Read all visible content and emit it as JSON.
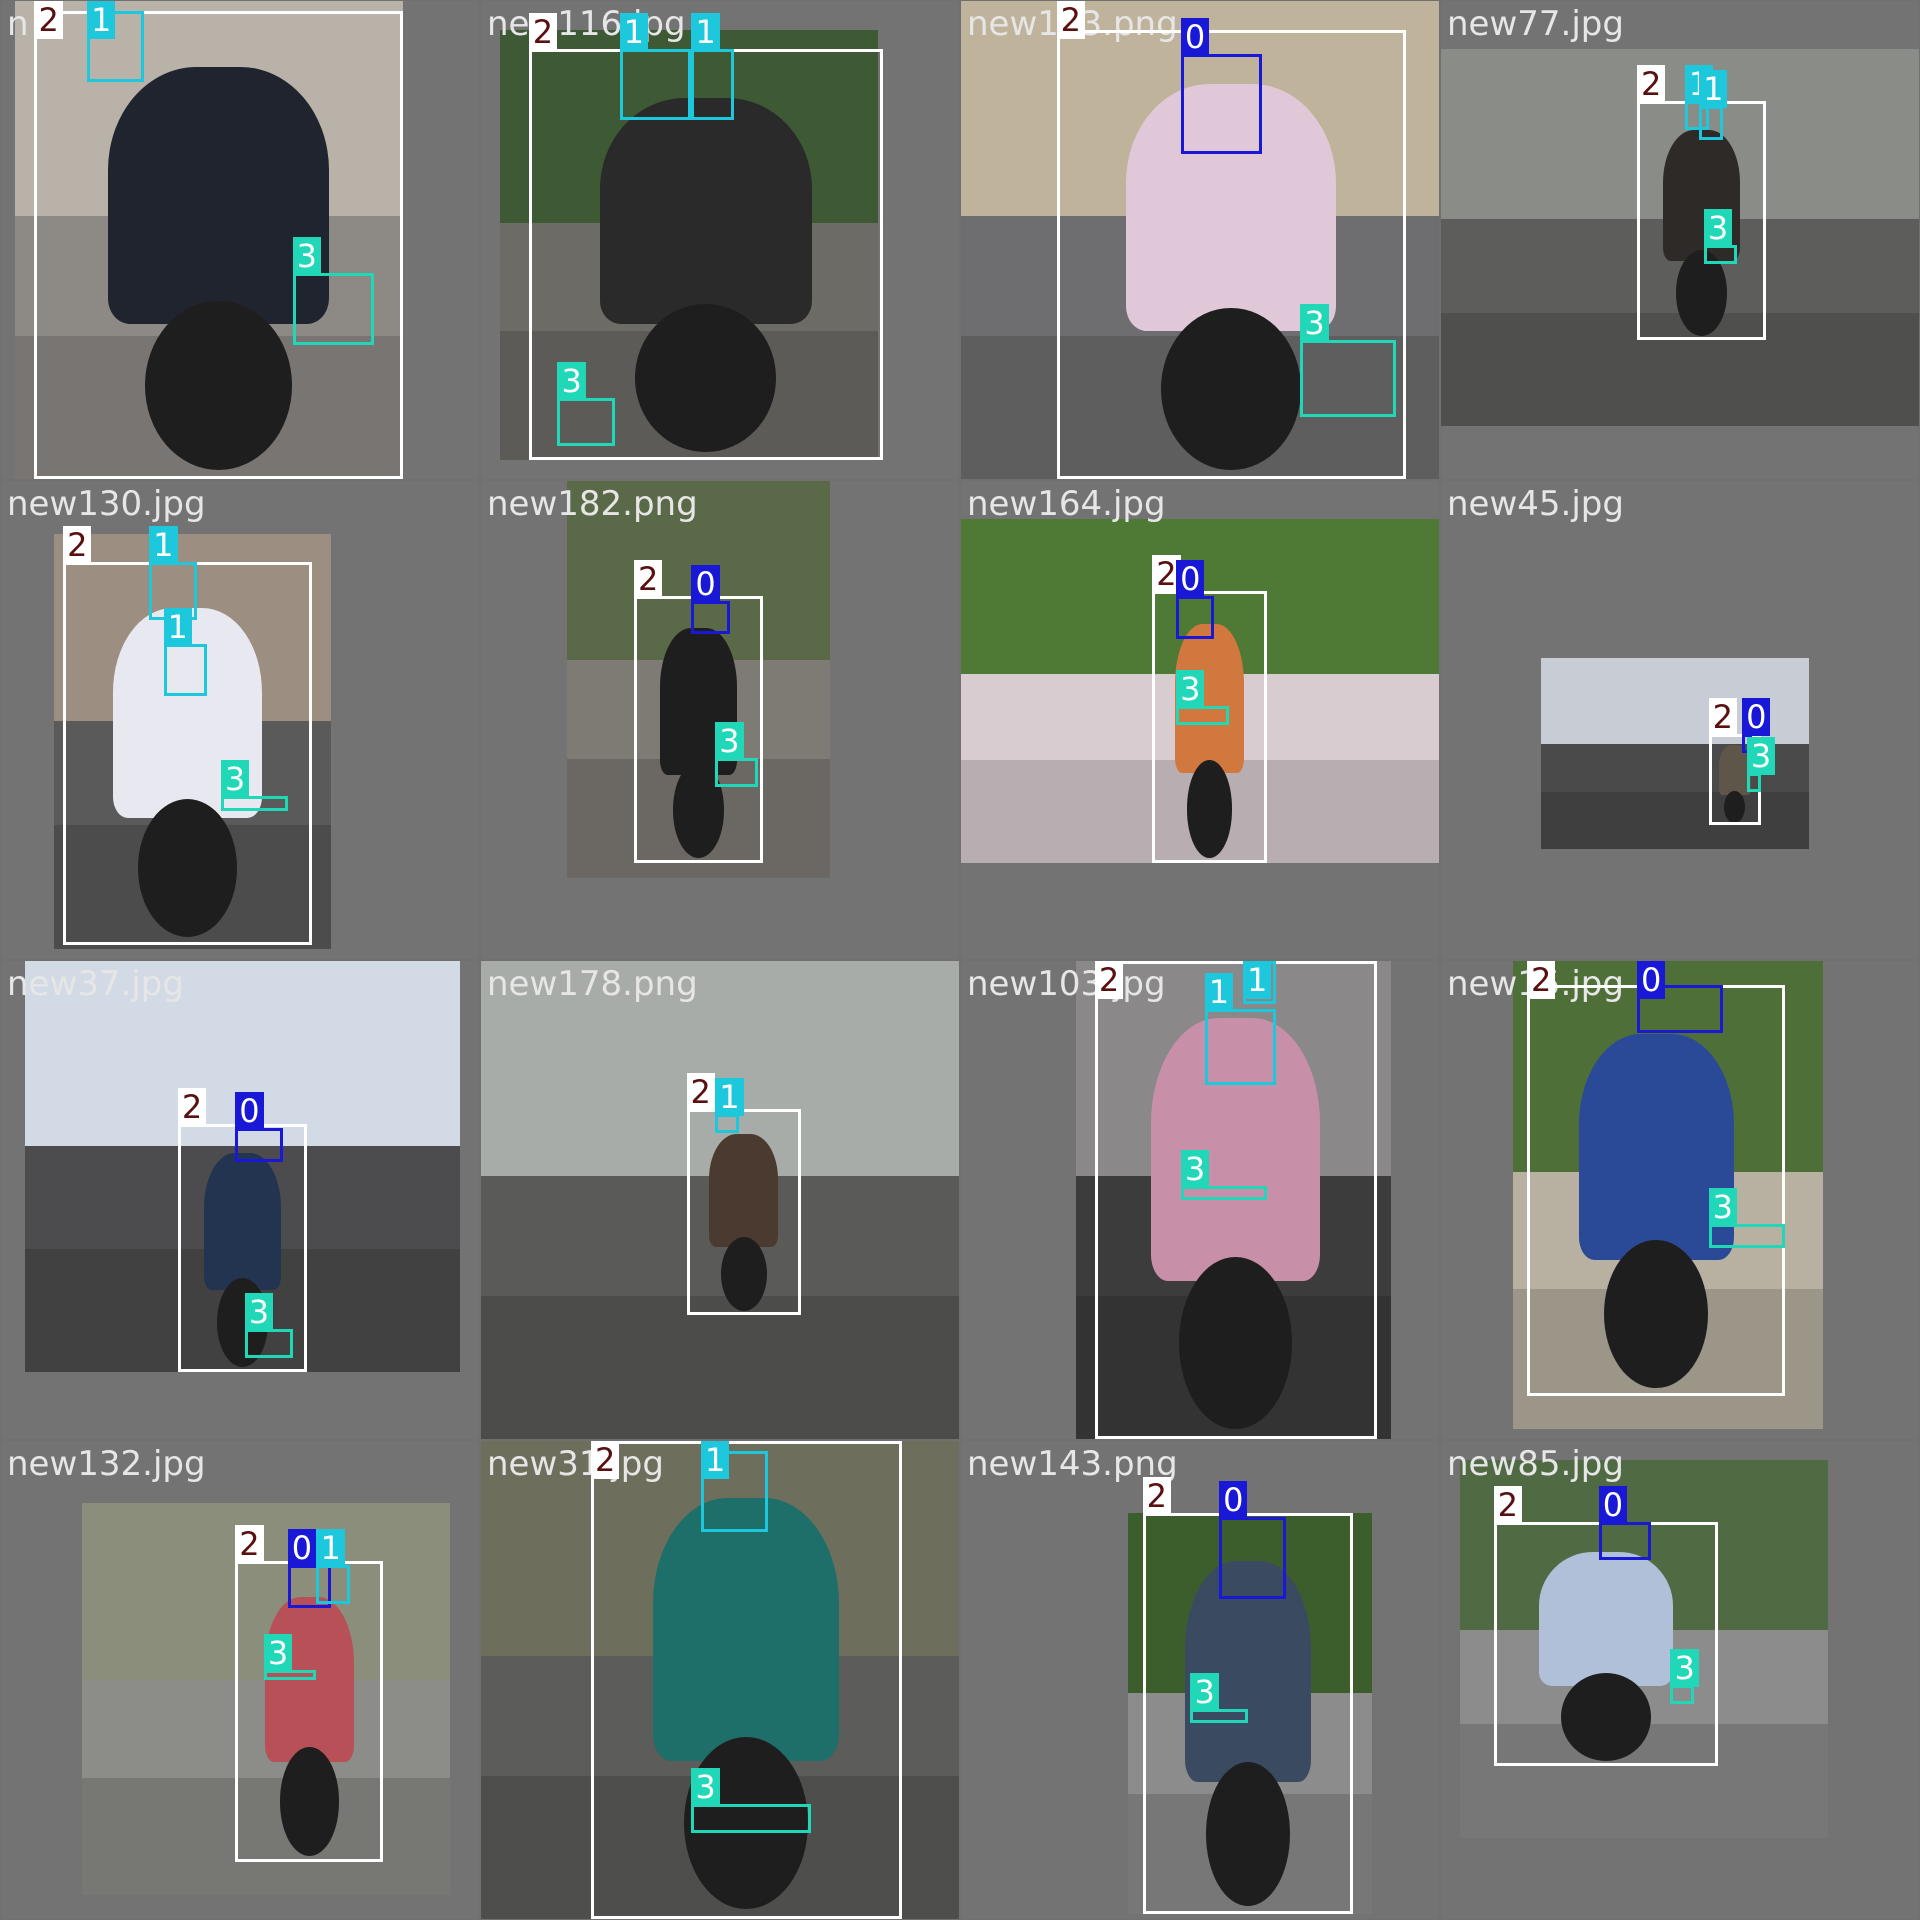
{
  "class_colors": {
    "0": "#1818d6",
    "1": "#1ec8dc",
    "2": "#ffffff",
    "3": "#20d8b8"
  },
  "tiles": [
    {
      "name": "n",
      "tone": [
        "#b9b2a8",
        "#8d8a86",
        "#20242e"
      ],
      "photo": [
        0.03,
        0.0,
        0.84,
        1.0
      ],
      "boxes": [
        {
          "c": 2,
          "b": [
            0.07,
            0.02,
            0.84,
            1.0
          ]
        },
        {
          "c": 1,
          "b": [
            0.18,
            0.02,
            0.3,
            0.17
          ]
        },
        {
          "c": 3,
          "b": [
            0.61,
            0.57,
            0.78,
            0.72
          ]
        }
      ]
    },
    {
      "name": "new116.jpg",
      "tone": [
        "#3e5a34",
        "#6d6b66",
        "#2a2a2a"
      ],
      "photo": [
        0.04,
        0.06,
        0.83,
        0.96
      ],
      "boxes": [
        {
          "c": 2,
          "b": [
            0.1,
            0.1,
            0.84,
            0.96
          ]
        },
        {
          "c": 1,
          "b": [
            0.29,
            0.1,
            0.44,
            0.25
          ]
        },
        {
          "c": 1,
          "b": [
            0.44,
            0.1,
            0.53,
            0.25
          ]
        },
        {
          "c": 3,
          "b": [
            0.16,
            0.83,
            0.28,
            0.93
          ]
        }
      ]
    },
    {
      "name": "new153.png",
      "tone": [
        "#c0b39c",
        "#6e6e70",
        "#e0c8d8"
      ],
      "photo": [
        0.0,
        0.0,
        1.0,
        1.0
      ],
      "boxes": [
        {
          "c": 2,
          "b": [
            0.2,
            0.06,
            0.93,
            1.0
          ]
        },
        {
          "c": 0,
          "b": [
            0.46,
            0.11,
            0.63,
            0.32
          ]
        },
        {
          "c": 3,
          "b": [
            0.71,
            0.71,
            0.91,
            0.87
          ]
        }
      ]
    },
    {
      "name": "new77.jpg",
      "tone": [
        "#8a8c88",
        "#5d5d5b",
        "#2e2a28"
      ],
      "photo": [
        0.0,
        0.1,
        1.0,
        0.89
      ],
      "boxes": [
        {
          "c": 2,
          "b": [
            0.41,
            0.21,
            0.68,
            0.71
          ]
        },
        {
          "c": 1,
          "b": [
            0.51,
            0.21,
            0.56,
            0.27
          ]
        },
        {
          "c": 1,
          "b": [
            0.54,
            0.22,
            0.59,
            0.29
          ]
        },
        {
          "c": 3,
          "b": [
            0.55,
            0.51,
            0.62,
            0.55
          ]
        }
      ]
    },
    {
      "name": "new130.jpg",
      "tone": [
        "#9c8e80",
        "#5b5a5a",
        "#e8e8f0"
      ],
      "photo": [
        0.11,
        0.11,
        0.69,
        0.98
      ],
      "boxes": [
        {
          "c": 2,
          "b": [
            0.13,
            0.17,
            0.65,
            0.97
          ]
        },
        {
          "c": 1,
          "b": [
            0.31,
            0.17,
            0.41,
            0.29
          ]
        },
        {
          "c": 1,
          "b": [
            0.34,
            0.34,
            0.43,
            0.45
          ]
        },
        {
          "c": 3,
          "b": [
            0.46,
            0.66,
            0.6,
            0.69
          ]
        }
      ]
    },
    {
      "name": "new182.png",
      "tone": [
        "#5a6a48",
        "#7e7a74",
        "#1e1e1e"
      ],
      "photo": [
        0.18,
        0.0,
        0.73,
        0.83
      ],
      "boxes": [
        {
          "c": 2,
          "b": [
            0.32,
            0.24,
            0.59,
            0.8
          ]
        },
        {
          "c": 0,
          "b": [
            0.44,
            0.25,
            0.52,
            0.32
          ]
        },
        {
          "c": 3,
          "b": [
            0.49,
            0.58,
            0.58,
            0.64
          ]
        }
      ]
    },
    {
      "name": "new164.jpg",
      "tone": [
        "#4e7a36",
        "#d8ccd0",
        "#d0783e"
      ],
      "photo": [
        0.0,
        0.08,
        1.0,
        0.8
      ],
      "boxes": [
        {
          "c": 2,
          "b": [
            0.4,
            0.23,
            0.64,
            0.8
          ]
        },
        {
          "c": 0,
          "b": [
            0.45,
            0.24,
            0.53,
            0.33
          ]
        },
        {
          "c": 3,
          "b": [
            0.45,
            0.47,
            0.56,
            0.51
          ]
        }
      ]
    },
    {
      "name": "new45.jpg",
      "tone": [
        "#c8ccd4",
        "#4a4a4a",
        "#5e5648"
      ],
      "photo": [
        0.21,
        0.37,
        0.77,
        0.77
      ],
      "boxes": [
        {
          "c": 2,
          "b": [
            0.56,
            0.53,
            0.67,
            0.72
          ]
        },
        {
          "c": 0,
          "b": [
            0.63,
            0.53,
            0.65,
            0.57
          ]
        },
        {
          "c": 3,
          "b": [
            0.64,
            0.61,
            0.67,
            0.65
          ]
        }
      ]
    },
    {
      "name": "new37.jpg",
      "tone": [
        "#d2dae6",
        "#4c4c4e",
        "#233450"
      ],
      "photo": [
        0.05,
        0.0,
        0.96,
        0.86
      ],
      "boxes": [
        {
          "c": 2,
          "b": [
            0.37,
            0.34,
            0.64,
            0.86
          ]
        },
        {
          "c": 0,
          "b": [
            0.49,
            0.35,
            0.59,
            0.42
          ]
        },
        {
          "c": 3,
          "b": [
            0.51,
            0.77,
            0.61,
            0.83
          ]
        }
      ]
    },
    {
      "name": "new178.png",
      "tone": [
        "#a8aca8",
        "#5a5a58",
        "#4a3a30"
      ],
      "photo": [
        0.0,
        0.0,
        1.0,
        1.0
      ],
      "boxes": [
        {
          "c": 2,
          "b": [
            0.43,
            0.31,
            0.67,
            0.74
          ]
        },
        {
          "c": 1,
          "b": [
            0.49,
            0.32,
            0.54,
            0.36
          ]
        }
      ]
    },
    {
      "name": "new103.jpg",
      "tone": [
        "#8a8888",
        "#3c3c3c",
        "#c890a8"
      ],
      "photo": [
        0.24,
        0.0,
        0.9,
        1.0
      ],
      "boxes": [
        {
          "c": 2,
          "b": [
            0.28,
            0.0,
            0.87,
            1.0
          ]
        },
        {
          "c": 1,
          "b": [
            0.59,
            0.0,
            0.66,
            0.09
          ]
        },
        {
          "c": 1,
          "b": [
            0.51,
            0.1,
            0.66,
            0.26
          ]
        },
        {
          "c": 3,
          "b": [
            0.46,
            0.47,
            0.64,
            0.5
          ]
        }
      ]
    },
    {
      "name": "new15.jpg",
      "tone": [
        "#4e7038",
        "#b8b0a0",
        "#2a4a98"
      ],
      "photo": [
        0.15,
        0.0,
        0.8,
        0.98
      ],
      "boxes": [
        {
          "c": 2,
          "b": [
            0.18,
            0.05,
            0.72,
            0.91
          ]
        },
        {
          "c": 0,
          "b": [
            0.41,
            0.05,
            0.59,
            0.15
          ]
        },
        {
          "c": 3,
          "b": [
            0.56,
            0.55,
            0.72,
            0.6
          ]
        }
      ]
    },
    {
      "name": "new132.jpg",
      "tone": [
        "#8a8e7a",
        "#8c8c88",
        "#b85058"
      ],
      "photo": [
        0.17,
        0.13,
        0.94,
        0.95
      ],
      "boxes": [
        {
          "c": 2,
          "b": [
            0.49,
            0.25,
            0.8,
            0.88
          ]
        },
        {
          "c": 0,
          "b": [
            0.6,
            0.26,
            0.69,
            0.35
          ]
        },
        {
          "c": 1,
          "b": [
            0.66,
            0.26,
            0.73,
            0.34
          ]
        },
        {
          "c": 3,
          "b": [
            0.55,
            0.48,
            0.66,
            0.5
          ]
        }
      ]
    },
    {
      "name": "new31.jpg",
      "tone": [
        "#6e6e5c",
        "#5c5c5a",
        "#1e6e6a"
      ],
      "photo": [
        0.0,
        0.0,
        1.0,
        1.0
      ],
      "boxes": [
        {
          "c": 2,
          "b": [
            0.23,
            0.0,
            0.88,
            1.0
          ]
        },
        {
          "c": 1,
          "b": [
            0.46,
            0.02,
            0.6,
            0.19
          ]
        },
        {
          "c": 3,
          "b": [
            0.44,
            0.76,
            0.69,
            0.82
          ]
        }
      ]
    },
    {
      "name": "new143.png",
      "tone": [
        "#3c5e2c",
        "#8c8c8c",
        "#3a4a60"
      ],
      "photo": [
        0.35,
        0.15,
        0.86,
        0.99
      ],
      "boxes": [
        {
          "c": 2,
          "b": [
            0.38,
            0.15,
            0.82,
            0.99
          ]
        },
        {
          "c": 0,
          "b": [
            0.54,
            0.16,
            0.68,
            0.33
          ]
        },
        {
          "c": 3,
          "b": [
            0.48,
            0.56,
            0.6,
            0.59
          ]
        }
      ]
    },
    {
      "name": "new85.jpg",
      "tone": [
        "#506a44",
        "#8c8c8c",
        "#b0c0d8"
      ],
      "photo": [
        0.04,
        0.04,
        0.81,
        0.83
      ],
      "boxes": [
        {
          "c": 2,
          "b": [
            0.11,
            0.17,
            0.58,
            0.68
          ]
        },
        {
          "c": 0,
          "b": [
            0.33,
            0.17,
            0.44,
            0.25
          ]
        },
        {
          "c": 3,
          "b": [
            0.48,
            0.51,
            0.53,
            0.55
          ]
        }
      ]
    }
  ]
}
